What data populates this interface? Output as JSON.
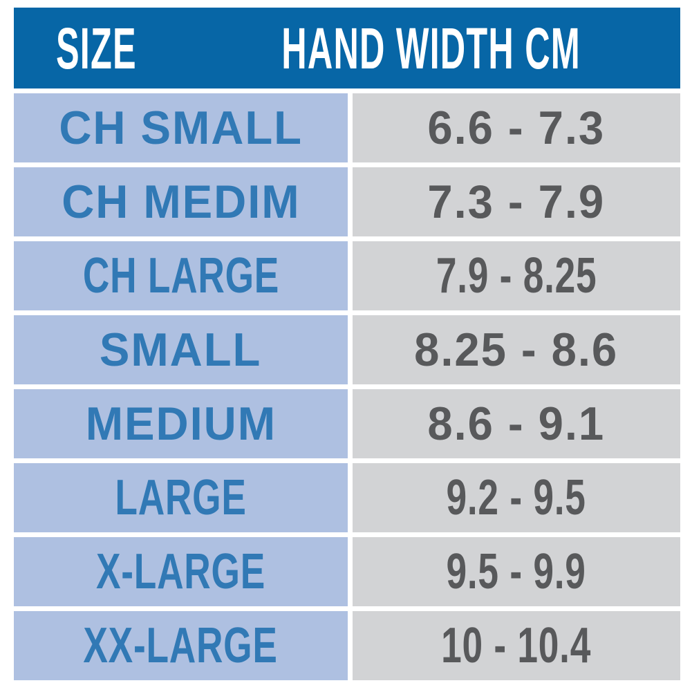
{
  "table": {
    "header": {
      "size_label": "SIZE",
      "hand_width_label": "HAND WIDTH CM"
    },
    "rows": [
      {
        "size": "CH SMALL",
        "hand_width": "6.6 - 7.3"
      },
      {
        "size": "CH MEDIM",
        "hand_width": "7.3 - 7.9"
      },
      {
        "size": "CH LARGE",
        "hand_width": "7.9 - 8.25"
      },
      {
        "size": "SMALL",
        "hand_width": "8.25 - 8.6"
      },
      {
        "size": "MEDIUM",
        "hand_width": "8.6 - 9.1"
      },
      {
        "size": "LARGE",
        "hand_width": "9.2 - 9.5"
      },
      {
        "size": "X-LARGE",
        "hand_width": "9.5 - 9.9"
      },
      {
        "size": "XX-LARGE",
        "hand_width": "10 - 10.4"
      }
    ],
    "colors": {
      "header_bg": "#0766A6",
      "header_text": "#FFFFFF",
      "size_cell_bg": "#AEC0E1",
      "size_text": "#3179B5",
      "value_cell_bg": "#D2D3D5",
      "value_text": "#58595B",
      "separator": "#FFFFFF"
    }
  },
  "chart_data": {
    "type": "table",
    "title": "",
    "columns": [
      "SIZE",
      "HAND WIDTH CM"
    ],
    "rows": [
      [
        "CH SMALL",
        "6.6 - 7.3"
      ],
      [
        "CH MEDIM",
        "7.3 - 7.9"
      ],
      [
        "CH LARGE",
        "7.9 - 8.25"
      ],
      [
        "SMALL",
        "8.25 - 8.6"
      ],
      [
        "MEDIUM",
        "8.6 - 9.1"
      ],
      [
        "LARGE",
        "9.2 - 9.5"
      ],
      [
        "X-LARGE",
        "9.5 - 9.9"
      ],
      [
        "XX-LARGE",
        "10 - 10.4"
      ]
    ],
    "hand_width_ranges_cm": [
      [
        6.6,
        7.3
      ],
      [
        7.3,
        7.9
      ],
      [
        7.9,
        8.25
      ],
      [
        8.25,
        8.6
      ],
      [
        8.6,
        9.1
      ],
      [
        9.2,
        9.5
      ],
      [
        9.5,
        9.9
      ],
      [
        10,
        10.4
      ]
    ]
  }
}
